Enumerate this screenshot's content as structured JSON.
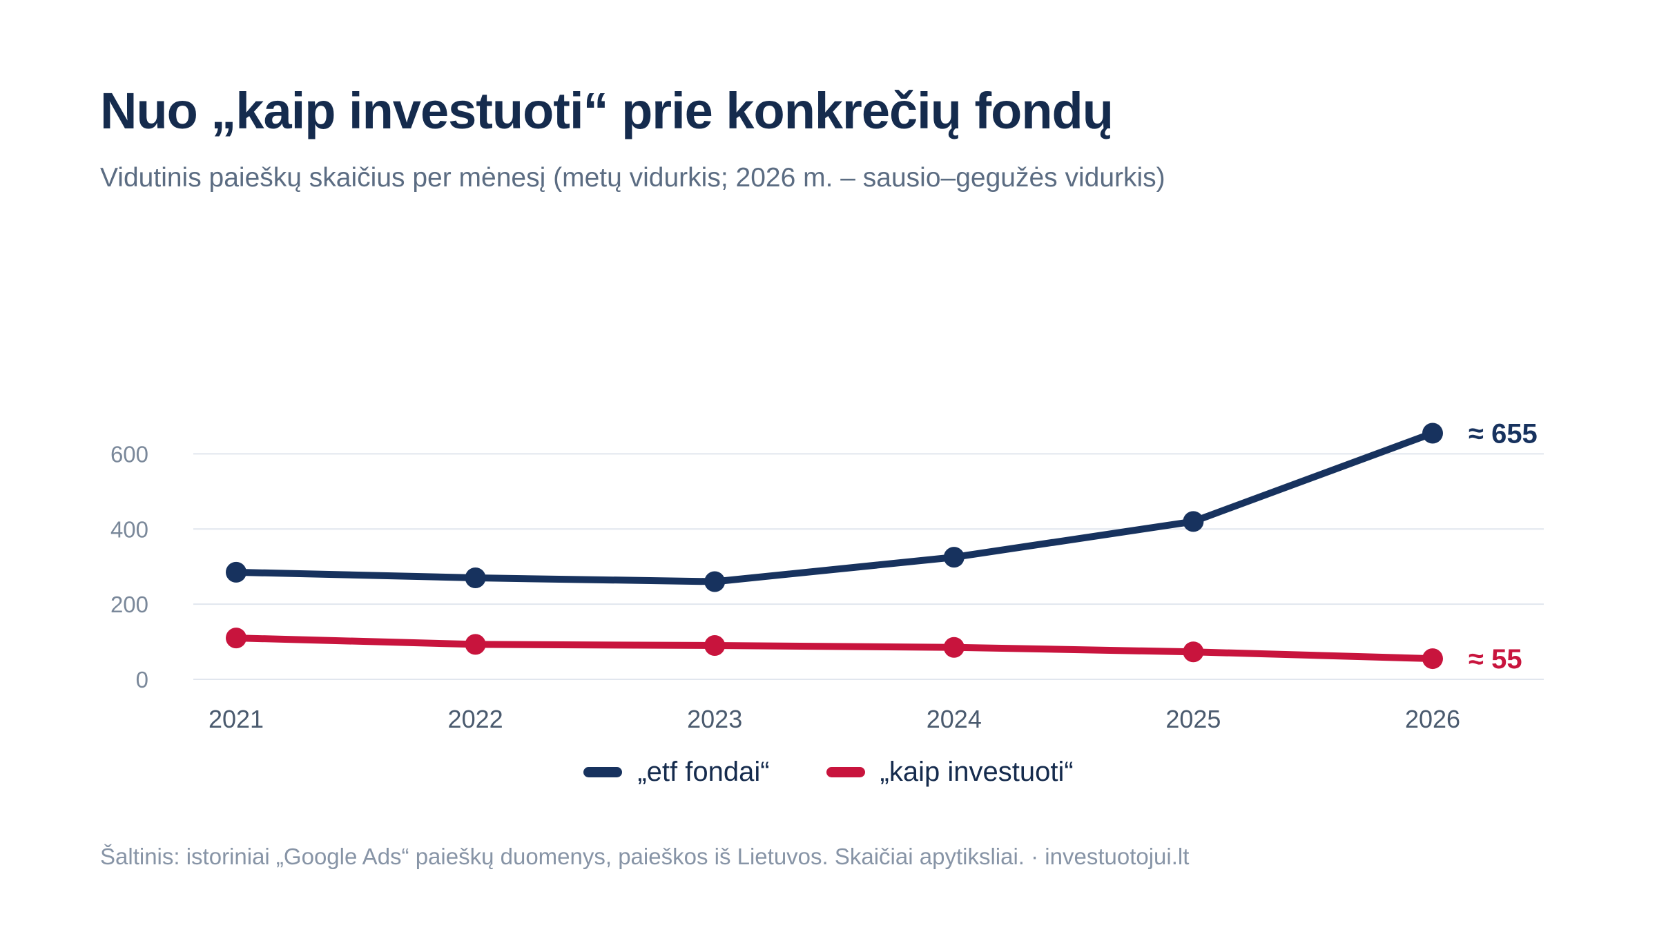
{
  "title": "Nuo „kaip investuoti“ prie konkrečių fondų",
  "subtitle": "Vidutinis paieškų skaičius per mėnesį (metų vidurkis; 2026 m. – sausio–gegužės vidurkis)",
  "footer": "Šaltinis: istoriniai „Google Ads“ paieškų duomenys, paieškos iš Lietuvos. Skaičiai apytiksliai. · investuotojui.lt",
  "chart_data": {
    "type": "line",
    "x": [
      "2021",
      "2022",
      "2023",
      "2024",
      "2025",
      "2026"
    ],
    "ylim": [
      0,
      655
    ],
    "yticks": [
      "0",
      "200",
      "400",
      "600"
    ],
    "grid": true,
    "legend_position": "bottom-center",
    "series": [
      {
        "name": "„etf fondai“",
        "values": [
          285,
          270,
          260,
          325,
          420,
          655
        ],
        "color": "#17325e",
        "end_label": "≈ 655"
      },
      {
        "name": "„kaip investuoti“",
        "values": [
          110,
          93,
          90,
          85,
          73,
          55
        ],
        "color": "#c8143d",
        "end_label": "≈ 55"
      }
    ]
  }
}
